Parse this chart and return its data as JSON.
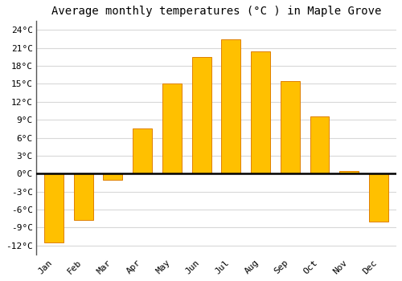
{
  "title": "Average monthly temperatures (°C ) in Maple Grove",
  "months": [
    "Jan",
    "Feb",
    "Mar",
    "Apr",
    "May",
    "Jun",
    "Jul",
    "Aug",
    "Sep",
    "Oct",
    "Nov",
    "Dec"
  ],
  "values": [
    -11.5,
    -7.8,
    -1.0,
    7.5,
    15.0,
    19.5,
    22.5,
    20.5,
    15.5,
    9.5,
    0.5,
    -8.0
  ],
  "bar_color": "#FFC000",
  "bar_edge_color": "#E08000",
  "bar_width": 0.65,
  "ylim": [
    -13.5,
    25.5
  ],
  "yticks": [
    -12,
    -9,
    -6,
    -3,
    0,
    3,
    6,
    9,
    12,
    15,
    18,
    21,
    24
  ],
  "ytick_labels": [
    "-12°C",
    "-9°C",
    "-6°C",
    "-3°C",
    "0°C",
    "3°C",
    "6°C",
    "9°C",
    "12°C",
    "15°C",
    "18°C",
    "21°C",
    "24°C"
  ],
  "background_color": "#ffffff",
  "grid_color": "#d8d8d8",
  "zero_line_color": "#000000",
  "title_fontsize": 10,
  "tick_fontsize": 8,
  "font_family": "monospace",
  "left_spine_color": "#555555",
  "bottom_spine_color": "#555555"
}
